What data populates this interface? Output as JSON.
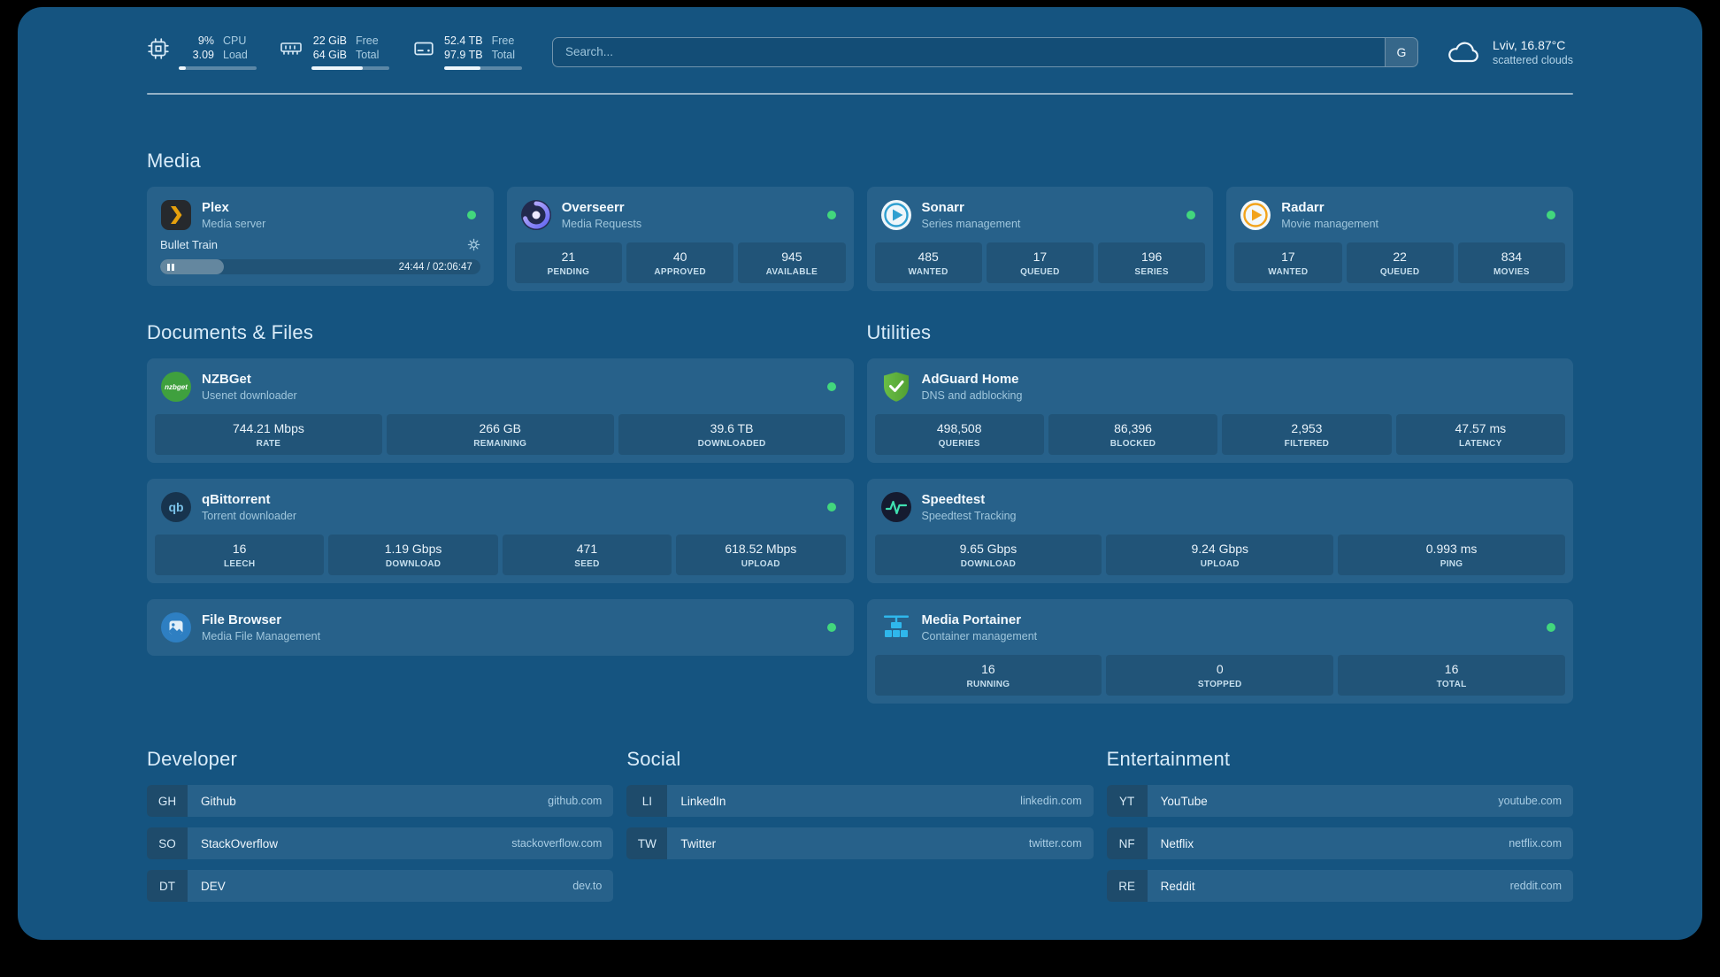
{
  "colors": {
    "background": "#155480",
    "status_online": "#42d77d",
    "plex_orange": "#e5a00d",
    "adguard_green": "#69bd45",
    "portainer_blue": "#2fb7ec"
  },
  "topbar": {
    "cpu": {
      "icon": "cpu-chip-icon",
      "values": [
        "9%",
        "3.09"
      ],
      "labels": [
        "CPU",
        "Load"
      ],
      "percent": 9
    },
    "memory": {
      "icon": "memory-icon",
      "values": [
        "22 GiB",
        "64 GiB"
      ],
      "labels": [
        "Free",
        "Total"
      ],
      "percent": 66
    },
    "disk": {
      "icon": "disk-icon",
      "values": [
        "52.4 TB",
        "97.9 TB"
      ],
      "labels": [
        "Free",
        "Total"
      ],
      "percent": 47
    },
    "search": {
      "placeholder": "Search...",
      "provider_label": "G"
    },
    "weather": {
      "icon": "cloud-icon",
      "location": "Lviv, 16.87°C",
      "condition": "scattered clouds"
    }
  },
  "groups": {
    "media": {
      "title": "Media",
      "services": [
        {
          "name": "Plex",
          "subtitle": "Media server",
          "icon": "plex-icon",
          "status": "online",
          "player": {
            "title": "Bullet Train",
            "time": "24:44 / 02:06:47",
            "progress_percent": 20
          }
        },
        {
          "name": "Overseerr",
          "subtitle": "Media Requests",
          "icon": "overseerr-icon",
          "status": "online",
          "stats": [
            {
              "value": "21",
              "label": "PENDING"
            },
            {
              "value": "40",
              "label": "APPROVED"
            },
            {
              "value": "945",
              "label": "AVAILABLE"
            }
          ]
        },
        {
          "name": "Sonarr",
          "subtitle": "Series management",
          "icon": "sonarr-icon",
          "status": "online",
          "stats": [
            {
              "value": "485",
              "label": "WANTED"
            },
            {
              "value": "17",
              "label": "QUEUED"
            },
            {
              "value": "196",
              "label": "SERIES"
            }
          ]
        },
        {
          "name": "Radarr",
          "subtitle": "Movie management",
          "icon": "radarr-icon",
          "status": "online",
          "stats": [
            {
              "value": "17",
              "label": "WANTED"
            },
            {
              "value": "22",
              "label": "QUEUED"
            },
            {
              "value": "834",
              "label": "MOVIES"
            }
          ]
        }
      ]
    },
    "documents": {
      "title": "Documents & Files",
      "services": [
        {
          "name": "NZBGet",
          "subtitle": "Usenet downloader",
          "icon": "nzbget-icon",
          "status": "online",
          "stats": [
            {
              "value": "744.21 Mbps",
              "label": "RATE"
            },
            {
              "value": "266 GB",
              "label": "REMAINING"
            },
            {
              "value": "39.6 TB",
              "label": "DOWNLOADED"
            }
          ]
        },
        {
          "name": "qBittorrent",
          "subtitle": "Torrent downloader",
          "icon": "qbittorrent-icon",
          "status": "online",
          "stats": [
            {
              "value": "16",
              "label": "LEECH"
            },
            {
              "value": "1.19 Gbps",
              "label": "DOWNLOAD"
            },
            {
              "value": "471",
              "label": "SEED"
            },
            {
              "value": "618.52 Mbps",
              "label": "UPLOAD"
            }
          ]
        },
        {
          "name": "File Browser",
          "subtitle": "Media File Management",
          "icon": "filebrowser-icon",
          "status": "online"
        }
      ]
    },
    "utilities": {
      "title": "Utilities",
      "services": [
        {
          "name": "AdGuard Home",
          "subtitle": "DNS and adblocking",
          "icon": "adguard-shield-icon",
          "stats": [
            {
              "value": "498,508",
              "label": "QUERIES"
            },
            {
              "value": "86,396",
              "label": "BLOCKED"
            },
            {
              "value": "2,953",
              "label": "FILTERED"
            },
            {
              "value": "47.57 ms",
              "label": "LATENCY"
            }
          ]
        },
        {
          "name": "Speedtest",
          "subtitle": "Speedtest Tracking",
          "icon": "speedtest-pulse-icon",
          "stats": [
            {
              "value": "9.65 Gbps",
              "label": "DOWNLOAD"
            },
            {
              "value": "9.24 Gbps",
              "label": "UPLOAD"
            },
            {
              "value": "0.993 ms",
              "label": "PING"
            }
          ]
        },
        {
          "name": "Media Portainer",
          "subtitle": "Container management",
          "icon": "portainer-icon",
          "status": "online",
          "stats": [
            {
              "value": "16",
              "label": "RUNNING"
            },
            {
              "value": "0",
              "label": "STOPPED"
            },
            {
              "value": "16",
              "label": "TOTAL"
            }
          ]
        }
      ]
    }
  },
  "bookmarks": [
    {
      "title": "Developer",
      "items": [
        {
          "abbr": "GH",
          "name": "Github",
          "domain": "github.com"
        },
        {
          "abbr": "SO",
          "name": "StackOverflow",
          "domain": "stackoverflow.com"
        },
        {
          "abbr": "DT",
          "name": "DEV",
          "domain": "dev.to"
        }
      ]
    },
    {
      "title": "Social",
      "items": [
        {
          "abbr": "LI",
          "name": "LinkedIn",
          "domain": "linkedin.com"
        },
        {
          "abbr": "TW",
          "name": "Twitter",
          "domain": "twitter.com"
        }
      ]
    },
    {
      "title": "Entertainment",
      "items": [
        {
          "abbr": "YT",
          "name": "YouTube",
          "domain": "youtube.com"
        },
        {
          "abbr": "NF",
          "name": "Netflix",
          "domain": "netflix.com"
        },
        {
          "abbr": "RE",
          "name": "Reddit",
          "domain": "reddit.com"
        }
      ]
    }
  ]
}
